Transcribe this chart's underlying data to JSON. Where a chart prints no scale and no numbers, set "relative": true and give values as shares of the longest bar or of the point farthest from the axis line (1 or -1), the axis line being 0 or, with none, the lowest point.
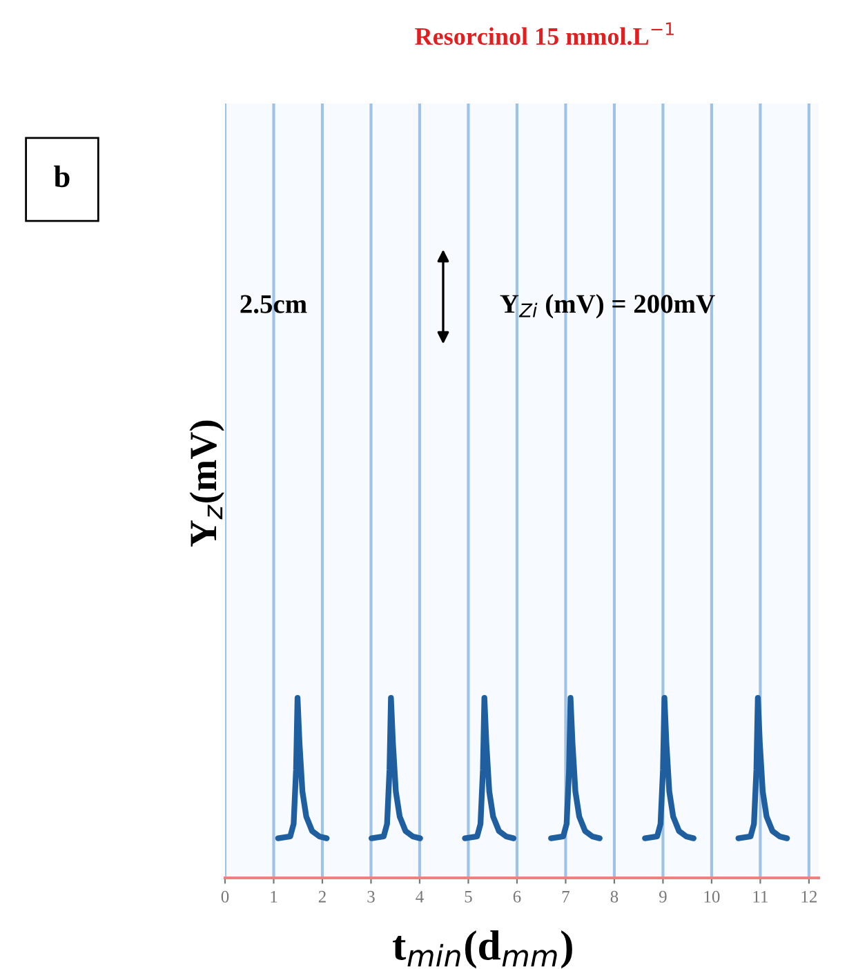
{
  "chart_data": {
    "type": "line",
    "title": "Resorcinol 15 mmol.L$^{−1}$",
    "xlabel": "t$_{min}$(d$_{mm}$)",
    "ylabel": "Y$_{z}$(mV)",
    "annotations": [
      "b",
      "2.5cm",
      "Y$_{Zi}$ (mV) = 200mV"
    ],
    "relative": true,
    "xlim": [
      0,
      12.2
    ],
    "xticks": [
      0,
      1,
      2,
      3,
      4,
      5,
      6,
      7,
      8,
      9,
      10,
      11,
      12
    ],
    "grid": "x",
    "tick_labels": "x",
    "marker": "none",
    "line_style": "solid",
    "series": [
      {
        "color": "#1f5fa0",
        "x": [
          1.09,
          1.34,
          1.41,
          1.46,
          1.49,
          1.53,
          1.59,
          1.67,
          1.79,
          1.94,
          2.09,
          2.5,
          3.01,
          3.26,
          3.33,
          3.38,
          3.41,
          3.45,
          3.51,
          3.59,
          3.71,
          3.86,
          4.01,
          4.5,
          4.93,
          5.18,
          5.25,
          5.3,
          5.33,
          5.37,
          5.43,
          5.51,
          5.63,
          5.78,
          5.93,
          6.3,
          6.7,
          6.95,
          7.02,
          7.07,
          7.1,
          7.14,
          7.2,
          7.28,
          7.4,
          7.55,
          7.7,
          8.2,
          8.63,
          8.88,
          8.95,
          9.0,
          9.03,
          9.07,
          9.13,
          9.21,
          9.33,
          9.48,
          9.63,
          10.1,
          10.55,
          10.8,
          10.87,
          10.92,
          10.95,
          10.99,
          11.05,
          11.13,
          11.25,
          11.4,
          11.55
        ],
        "values": [
          0.22,
          0.23,
          0.3,
          0.6,
          1.0,
          0.75,
          0.48,
          0.34,
          0.26,
          0.23,
          0.22,
          null,
          0.22,
          0.23,
          0.3,
          0.6,
          1.0,
          0.75,
          0.48,
          0.34,
          0.26,
          0.23,
          0.22,
          null,
          0.22,
          0.23,
          0.3,
          0.6,
          1.0,
          0.75,
          0.48,
          0.34,
          0.26,
          0.23,
          0.22,
          null,
          0.22,
          0.23,
          0.3,
          0.6,
          1.0,
          0.75,
          0.48,
          0.34,
          0.26,
          0.23,
          0.22,
          null,
          0.22,
          0.23,
          0.3,
          0.6,
          1.0,
          0.75,
          0.48,
          0.34,
          0.26,
          0.23,
          0.22,
          null,
          0.22,
          0.23,
          0.3,
          0.6,
          1.0,
          0.75,
          0.48,
          0.34,
          0.26,
          0.23,
          0.22
        ]
      }
    ]
  }
}
